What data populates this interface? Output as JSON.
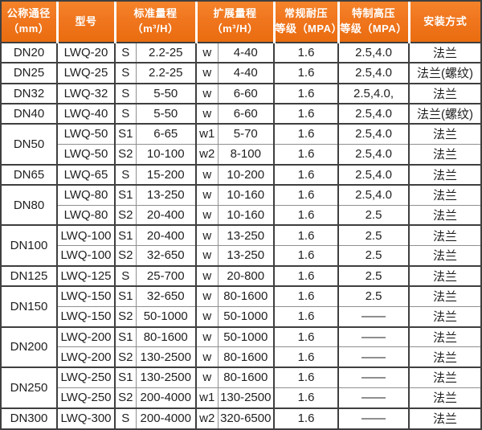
{
  "colors": {
    "header_bg": "#f0761e",
    "header_text": "#ffffff",
    "border_dark": "#3f3f3f",
    "border_light": "#8f8f8f",
    "cell_text": "#1f1f1f"
  },
  "table": {
    "header": {
      "col_dn": "公称通径\n（mm）",
      "col_model": "型号",
      "col_std_range": "标准量程\n（m³/H）",
      "col_ext_range": "扩展量程\n（m³/H）",
      "col_pressure": "常规耐压\n等级（MPA）",
      "col_high_pressure": "特制高压\n等级（MPA）",
      "col_install": "安装方式"
    },
    "groups": [
      {
        "dn": "DN20",
        "rows": [
          {
            "model": "LWQ-20",
            "s": "S",
            "std": "2.2-25",
            "w": "w",
            "ext": "4-40",
            "pressure": "1.6",
            "high": "2.5,4.0",
            "install": "法兰"
          }
        ]
      },
      {
        "dn": "DN25",
        "rows": [
          {
            "model": "LWQ-25",
            "s": "S",
            "std": "2.2-25",
            "w": "w",
            "ext": "4-40",
            "pressure": "1.6",
            "high": "2.5,4.0",
            "install": "法兰(螺纹)"
          }
        ]
      },
      {
        "dn": "DN32",
        "rows": [
          {
            "model": "LWQ-32",
            "s": "S",
            "std": "5-50",
            "w": "w",
            "ext": "6-60",
            "pressure": "1.6",
            "high": "2.5,4.0,",
            "install": "法兰"
          }
        ]
      },
      {
        "dn": "DN40",
        "rows": [
          {
            "model": "LWQ-40",
            "s": "S",
            "std": "5-50",
            "w": "w",
            "ext": "6-60",
            "pressure": "1.6",
            "high": "2.5,4.0",
            "install": "法兰(螺纹)"
          }
        ]
      },
      {
        "dn": "DN50",
        "rows": [
          {
            "model": "LWQ-50",
            "s": "S1",
            "std": "6-65",
            "w": "w1",
            "ext": "5-70",
            "pressure": "1.6",
            "high": "2.5,4.0",
            "install": "法兰"
          },
          {
            "model": "LWQ-50",
            "s": "S2",
            "std": "10-100",
            "w": "w2",
            "ext": "8-100",
            "pressure": "1.6",
            "high": "2.5,4.0",
            "install": "法兰"
          }
        ]
      },
      {
        "dn": "DN65",
        "rows": [
          {
            "model": "LWQ-65",
            "s": "S",
            "std": "15-200",
            "w": "w",
            "ext": "10-200",
            "pressure": "1.6",
            "high": "2.5,4.0",
            "install": "法兰"
          }
        ]
      },
      {
        "dn": "DN80",
        "rows": [
          {
            "model": "LWQ-80",
            "s": "S1",
            "std": "13-250",
            "w": "w",
            "ext": "10-160",
            "pressure": "1.6",
            "high": "2.5,4.0",
            "install": "法兰"
          },
          {
            "model": "LWQ-80",
            "s": "S2",
            "std": "20-400",
            "w": "w",
            "ext": "10-160",
            "pressure": "1.6",
            "high": "2.5",
            "install": "法兰"
          }
        ]
      },
      {
        "dn": "DN100",
        "rows": [
          {
            "model": "LWQ-100",
            "s": "S1",
            "std": "20-400",
            "w": "w",
            "ext": "13-250",
            "pressure": "1.6",
            "high": "2.5",
            "install": "法兰"
          },
          {
            "model": "LWQ-100",
            "s": "S2",
            "std": "32-650",
            "w": "w",
            "ext": "13-250",
            "pressure": "1.6",
            "high": "2.5",
            "install": "法兰"
          }
        ]
      },
      {
        "dn": "DN125",
        "rows": [
          {
            "model": "LWQ-125",
            "s": "S",
            "std": "25-700",
            "w": "w",
            "ext": "20-800",
            "pressure": "1.6",
            "high": "2.5",
            "install": "法兰"
          }
        ]
      },
      {
        "dn": "DN150",
        "rows": [
          {
            "model": "LWQ-150",
            "s": "S1",
            "std": "32-650",
            "w": "w",
            "ext": "80-1600",
            "pressure": "1.6",
            "high": "2.5",
            "install": "法兰"
          },
          {
            "model": "LWQ-150",
            "s": "S2",
            "std": "50-1000",
            "w": "w",
            "ext": "50-1000",
            "pressure": "1.6",
            "high": "——",
            "install": "法兰"
          }
        ]
      },
      {
        "dn": "DN200",
        "rows": [
          {
            "model": "LWQ-200",
            "s": "S1",
            "std": "80-1600",
            "w": "w",
            "ext": "50-1000",
            "pressure": "1.6",
            "high": "——",
            "install": "法兰"
          },
          {
            "model": "LWQ-200",
            "s": "S2",
            "std": "130-2500",
            "w": "w",
            "ext": "80-1600",
            "pressure": "1.6",
            "high": "——",
            "install": "法兰"
          }
        ]
      },
      {
        "dn": "DN250",
        "rows": [
          {
            "model": "LWQ-250",
            "s": "S1",
            "std": "130-2500",
            "w": "w",
            "ext": "80-1600",
            "pressure": "1.6",
            "high": "——",
            "install": "法兰"
          },
          {
            "model": "LWQ-250",
            "s": "S2",
            "std": "200-4000",
            "w": "w1",
            "ext": "130-2500",
            "pressure": "1.6",
            "high": "——",
            "install": "法兰"
          }
        ]
      },
      {
        "dn": "DN300",
        "rows": [
          {
            "model": "LWQ-300",
            "s": "S",
            "std": "200-4000",
            "w": "w2",
            "ext": "320-6500",
            "pressure": "1.6",
            "high": "——",
            "install": "法兰"
          }
        ]
      }
    ]
  }
}
